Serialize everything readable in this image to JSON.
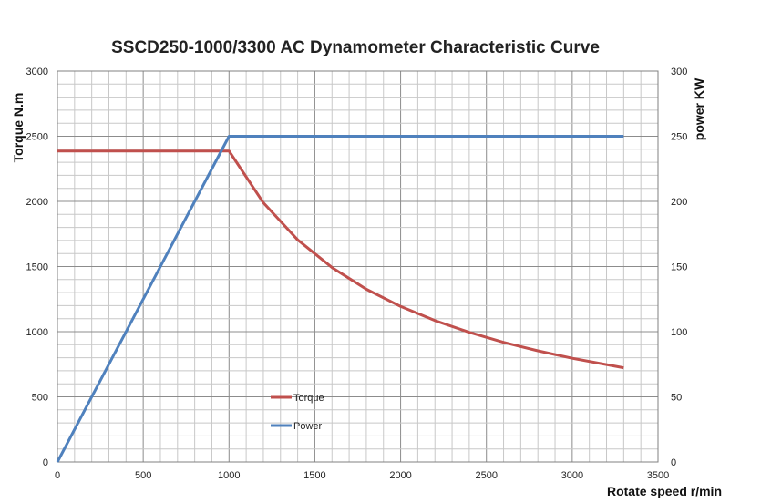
{
  "chart_data": {
    "type": "line",
    "title": "SSCD250-1000/3300 AC Dynamometer Characteristic Curve",
    "xlabel": "Rotate speed r/min",
    "ylabel_left": "Torque N.m",
    "ylabel_right": "power KW",
    "xlim": [
      0,
      3500
    ],
    "ylim_left": [
      0,
      3000
    ],
    "ylim_right": [
      0,
      300
    ],
    "x_ticks": [
      "0",
      "500",
      "1000",
      "1500",
      "2000",
      "2500",
      "3000",
      "3500"
    ],
    "y_left_ticks": [
      "0",
      "500",
      "1000",
      "1500",
      "2000",
      "2500",
      "3000"
    ],
    "y_right_ticks": [
      "0",
      "50",
      "100",
      "150",
      "200",
      "250",
      "300"
    ],
    "grid": true,
    "legend_position": "center-left",
    "series": [
      {
        "name": "Torque",
        "axis": "left",
        "color": "#C0504D",
        "x": [
          0,
          1000,
          1200,
          1400,
          1600,
          1800,
          2000,
          2200,
          2400,
          2600,
          2800,
          3000,
          3300
        ],
        "y": [
          2387,
          2387,
          1990,
          1705,
          1492,
          1326,
          1194,
          1085,
          995,
          918,
          853,
          796,
          723
        ]
      },
      {
        "name": "Power",
        "axis": "right",
        "color": "#4F81BD",
        "x": [
          0,
          1000,
          3300
        ],
        "y": [
          0,
          250,
          250
        ]
      }
    ]
  }
}
